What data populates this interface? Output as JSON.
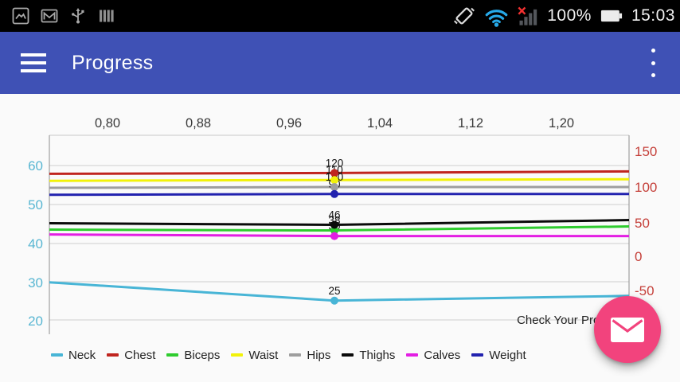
{
  "status_bar": {
    "time": "15:03",
    "battery_percent": "100%",
    "left_icons": [
      "screenshot-icon",
      "gmail-icon",
      "usb-icon",
      "sim-bars-icon"
    ],
    "right_icons": [
      "vibration-icon",
      "wifi-icon",
      "cell-signal-no-service-icon",
      "battery-icon"
    ],
    "wifi_color": "#27A9E8",
    "no_service_color": "#F23030"
  },
  "app_bar": {
    "title": "Progress",
    "color": "#3F51B5"
  },
  "chart_data": {
    "type": "line",
    "description": "Check Your Progress",
    "x_ticks": [
      "0,80",
      "0,88",
      "0,96",
      "1,04",
      "1,12",
      "1,20"
    ],
    "point_x": 1.0,
    "left_axis": {
      "ticks": [
        "60",
        "50",
        "40",
        "30",
        "20"
      ],
      "color": "#58B6D2",
      "range": [
        16,
        68
      ]
    },
    "right_axis": {
      "ticks": [
        "150",
        "100",
        "50",
        "0",
        "-50"
      ],
      "color": "#C5403A",
      "range": [
        -110,
        174
      ]
    },
    "grid": "horizontal-left-axis-only",
    "legend_position": "bottom",
    "series": [
      {
        "name": "Neck",
        "color": "#48B5D6",
        "axis": "left",
        "point_value": 25,
        "point_label": "25"
      },
      {
        "name": "Chest",
        "color": "#C0251F",
        "axis": "right",
        "point_value": 120,
        "point_label": "120"
      },
      {
        "name": "Biceps",
        "color": "#2FCC2F",
        "axis": "right",
        "point_value": 38,
        "point_label": "38"
      },
      {
        "name": "Waist",
        "color": "#F2F209",
        "axis": "right",
        "point_value": 110,
        "point_label": "110"
      },
      {
        "name": "Hips",
        "color": "#9E9E9E",
        "axis": "right",
        "point_value": 100,
        "point_label": "100"
      },
      {
        "name": "Thighs",
        "color": "#0A0A0A",
        "axis": "right",
        "point_value": 46,
        "point_label": "46"
      },
      {
        "name": "Calves",
        "color": "#E31EE3",
        "axis": "right",
        "point_value": 30,
        "point_label": "30"
      },
      {
        "name": "Weight",
        "color": "#2222AF",
        "axis": "right",
        "point_value": 90,
        "point_label": "90"
      }
    ]
  },
  "fab": {
    "color": "#F2437D",
    "icon": "email-icon"
  }
}
